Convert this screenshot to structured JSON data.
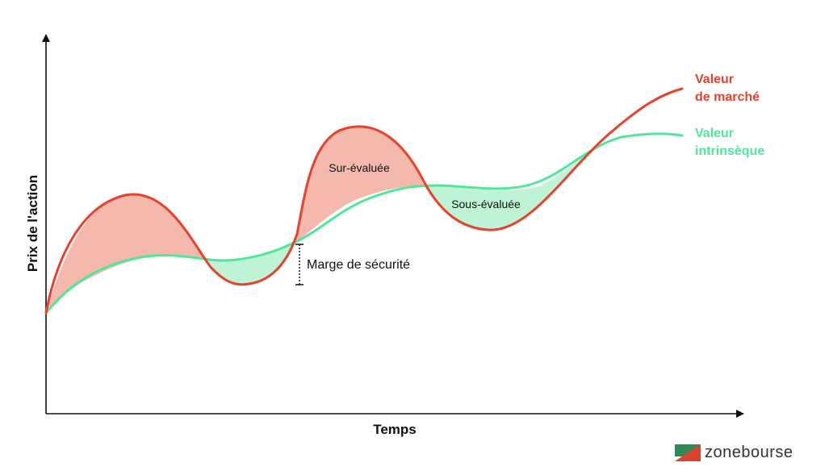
{
  "chart": {
    "y_axis_label": "Prix de l'action",
    "x_axis_label": "Temps",
    "series": {
      "market": {
        "name_line1": "Valeur",
        "name_line2": "de marché",
        "color": "#e8412c"
      },
      "intrinsic": {
        "name_line1": "Valeur",
        "name_line2": "intrinsèque",
        "color": "#4ee89a"
      }
    },
    "annotations": {
      "overvalued": "Sur-évaluée",
      "undervalued": "Sous-évaluée",
      "margin_of_safety": "Marge de sécurité"
    },
    "colors": {
      "overvalued_fill": "#f5b8ad",
      "undervalued_fill": "#bff3d6"
    }
  },
  "brand": {
    "name": "zonebourse",
    "logo_colors": [
      "#2e8b57",
      "#d9432f"
    ]
  }
}
